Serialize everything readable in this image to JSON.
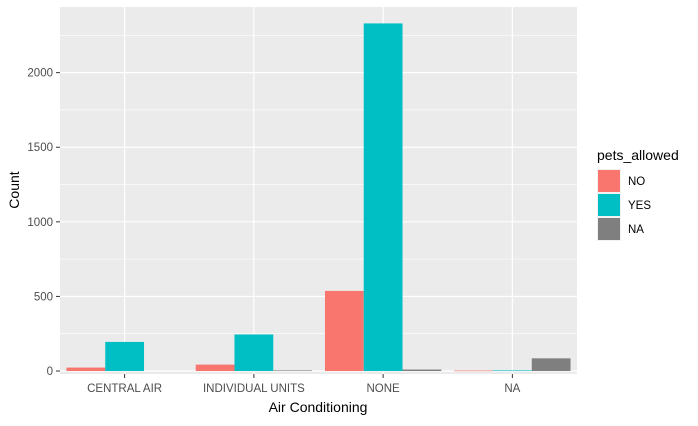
{
  "chart_data": {
    "type": "bar",
    "title": "",
    "xlabel": "Air Conditioning",
    "ylabel": "Count",
    "categories": [
      "CENTRAL AIR",
      "INDIVIDUAL UNITS",
      "NONE",
      "NA"
    ],
    "series": [
      {
        "name": "NO",
        "color": "#F8766D",
        "values": [
          23,
          43,
          537,
          3
        ]
      },
      {
        "name": "YES",
        "color": "#00BFC4",
        "values": [
          195,
          245,
          2330,
          4
        ]
      },
      {
        "name": "NA",
        "color": "#7F7F7F",
        "values": [
          null,
          4,
          10,
          85
        ]
      }
    ],
    "ylim": [
      -20,
      2440
    ],
    "yticks": [
      0,
      500,
      1000,
      1500,
      2000
    ],
    "grid": true,
    "legend": {
      "title": "pets_allowed",
      "placement": "right"
    },
    "panel_color": "#EBEBEB"
  }
}
